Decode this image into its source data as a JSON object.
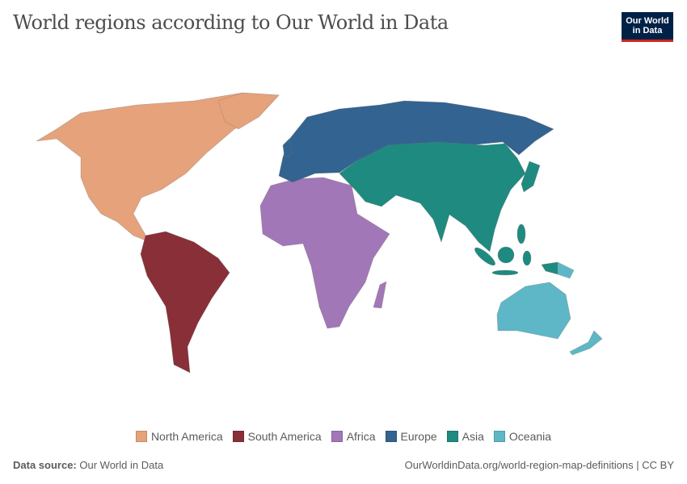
{
  "title": "World regions according to Our World in Data",
  "logo": {
    "line1": "Our World",
    "line2": "in Data"
  },
  "legend": [
    {
      "label": "North America",
      "color": "#E6A27B"
    },
    {
      "label": "South America",
      "color": "#882F38"
    },
    {
      "label": "Africa",
      "color": "#A277B8"
    },
    {
      "label": "Europe",
      "color": "#336390"
    },
    {
      "label": "Asia",
      "color": "#1E8A80"
    },
    {
      "label": "Oceania",
      "color": "#5DB7C6"
    }
  ],
  "footer": {
    "source_label": "Data source:",
    "source": "Our World in Data",
    "link": "OurWorldinData.org/world-region-map-definitions | CC BY"
  }
}
